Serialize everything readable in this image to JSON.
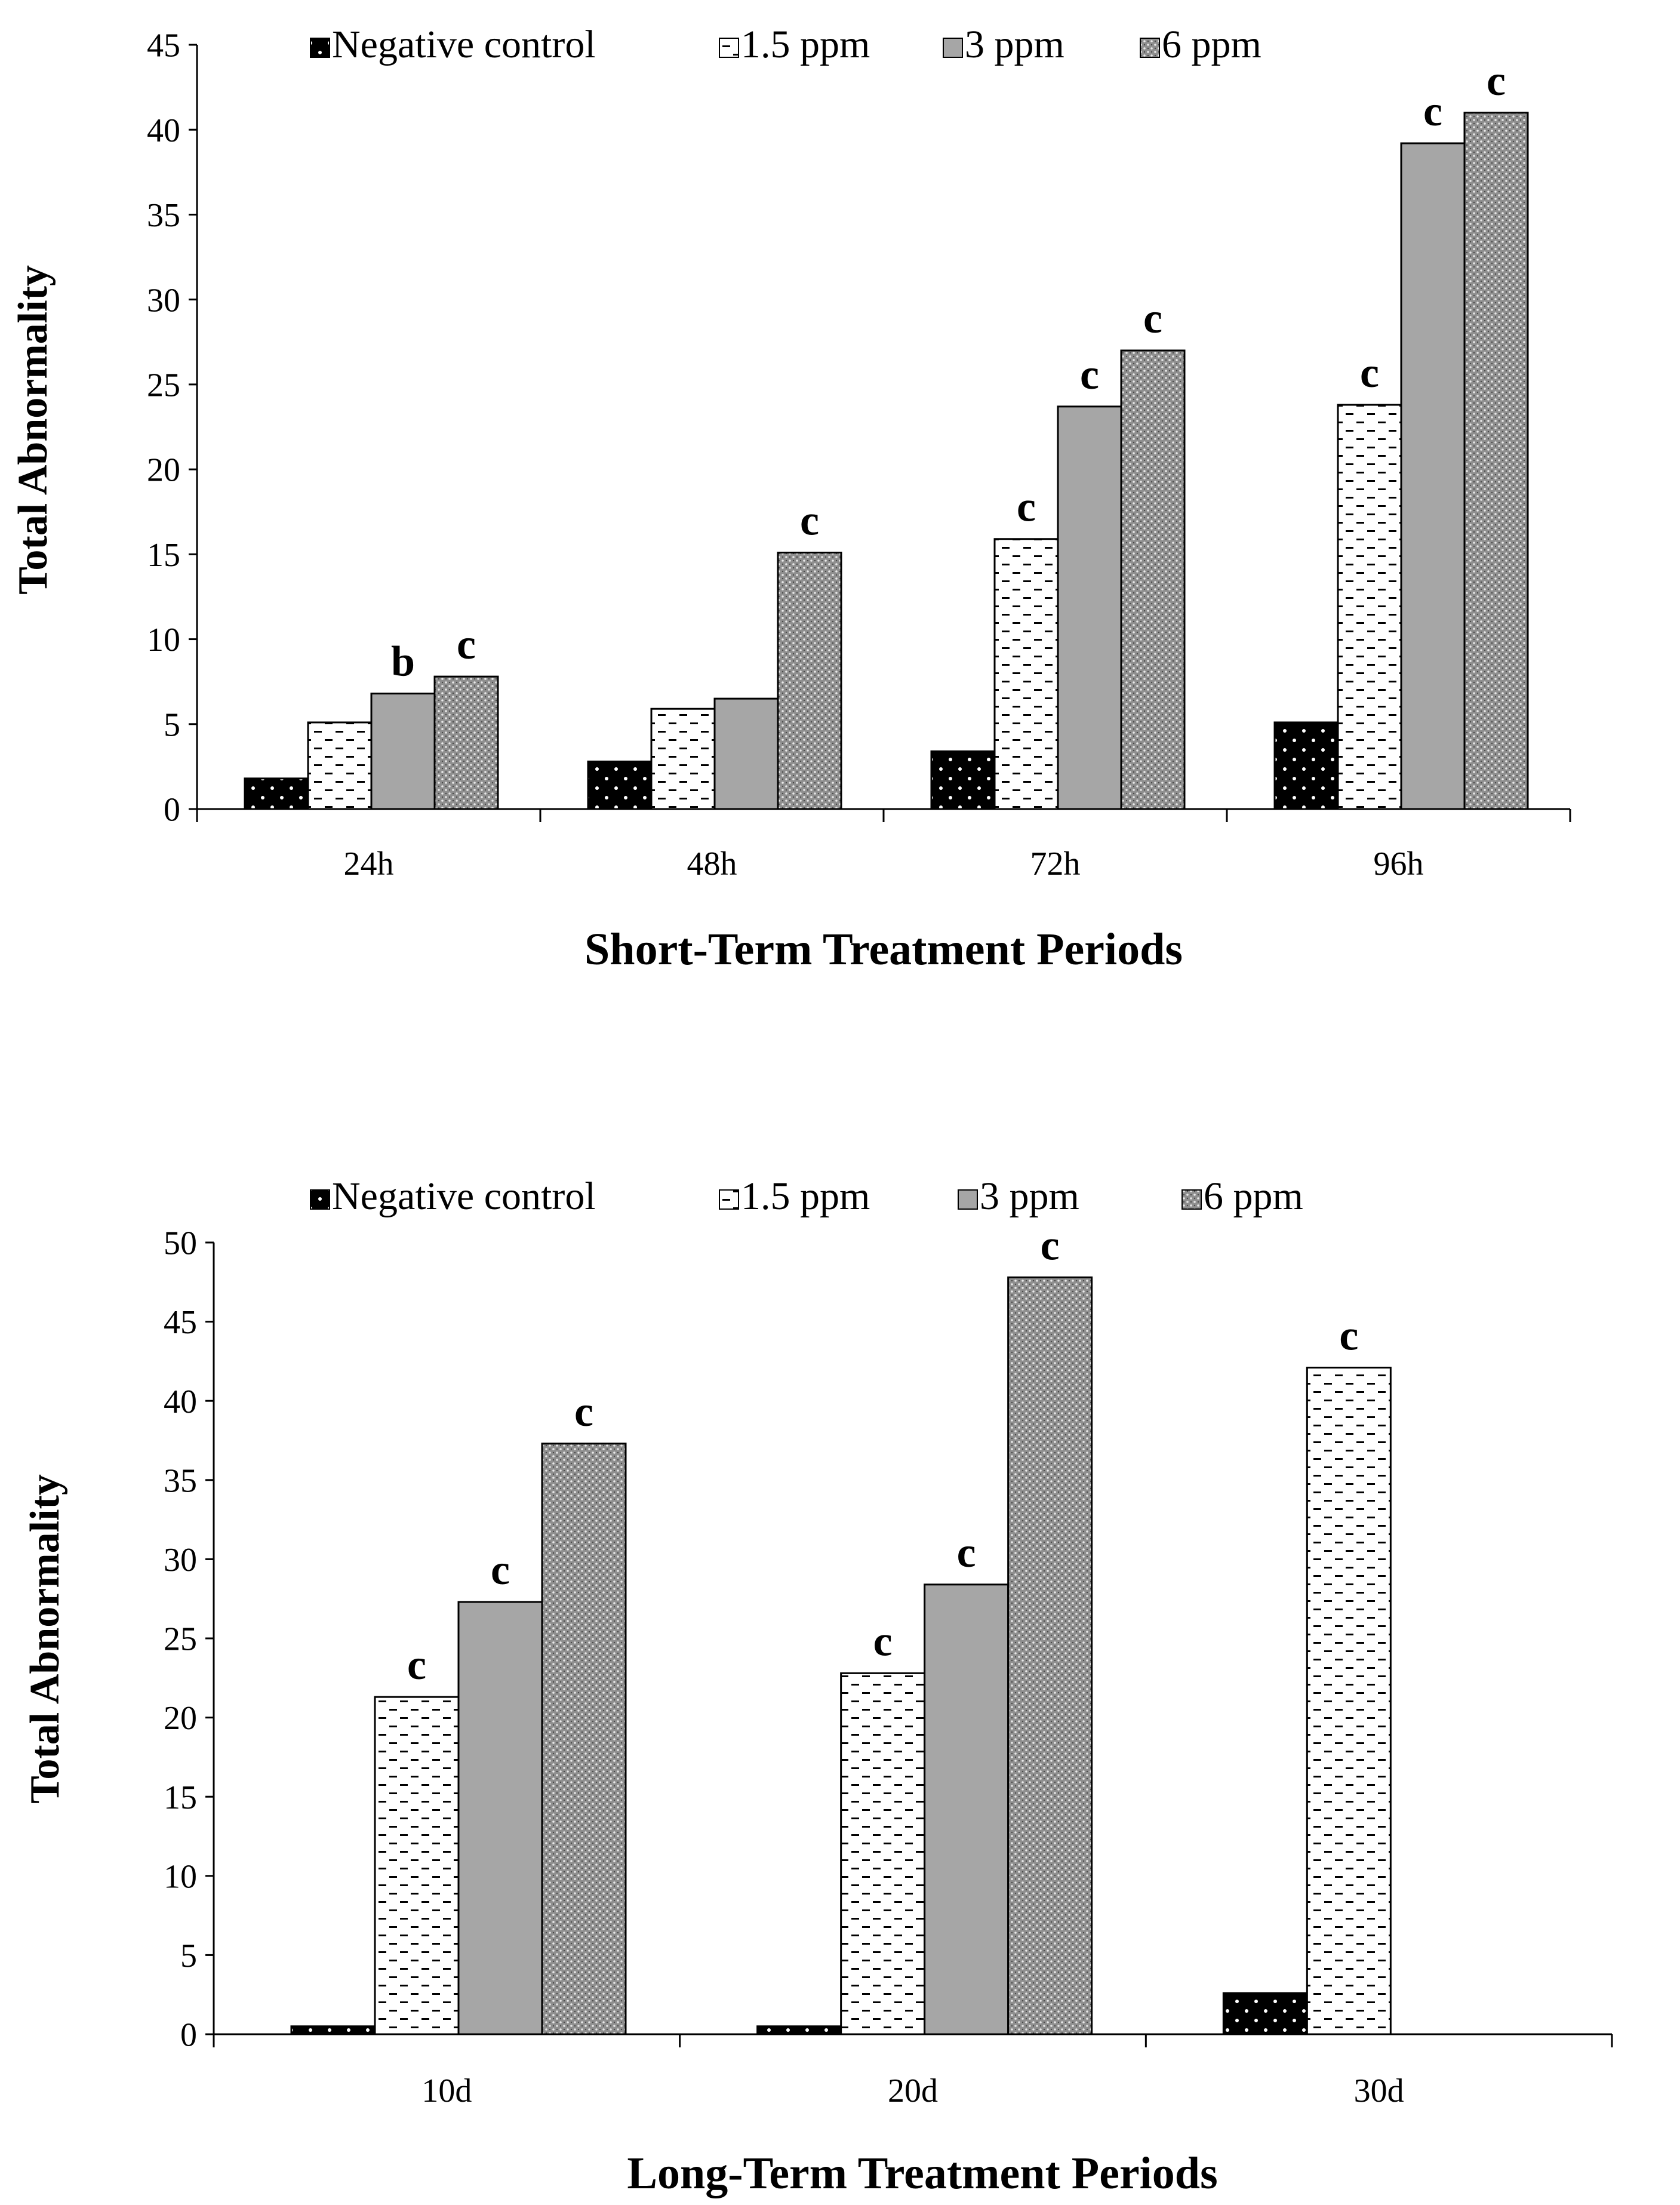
{
  "chart_data": [
    {
      "type": "bar",
      "title": "",
      "xlabel": "Short-Term  Treatment  Periods",
      "ylabel": "Total Abnormality",
      "ylim": [
        0,
        45
      ],
      "yticks": [
        "0",
        "5",
        "10",
        "15",
        "20",
        "25",
        "30",
        "35",
        "40",
        "45"
      ],
      "categories": [
        "24h",
        "48h",
        "72h",
        "96h"
      ],
      "legend_position": "top",
      "series": [
        {
          "name": "Negative control",
          "values": [
            1.8,
            2.8,
            3.4,
            5.1
          ],
          "labels": [
            "",
            "",
            "",
            ""
          ]
        },
        {
          "name": "1.5 ppm",
          "values": [
            5.1,
            5.9,
            15.9,
            23.8
          ],
          "labels": [
            "",
            "",
            "c",
            "c"
          ]
        },
        {
          "name": "3 ppm",
          "values": [
            6.8,
            6.5,
            23.7,
            39.2
          ],
          "labels": [
            "b",
            "",
            "c",
            "c"
          ]
        },
        {
          "name": "6 ppm",
          "values": [
            7.8,
            15.1,
            27.0,
            41.0
          ],
          "labels": [
            "c",
            "c",
            "c",
            "c"
          ]
        }
      ]
    },
    {
      "type": "bar",
      "title": "",
      "xlabel": "Long-Term  Treatment  Periods",
      "ylabel": "Total Abnormality",
      "ylim": [
        0,
        50
      ],
      "yticks": [
        "0",
        "5",
        "10",
        "15",
        "20",
        "25",
        "30",
        "35",
        "40",
        "45",
        "50"
      ],
      "categories": [
        "10d",
        "20d",
        "30d"
      ],
      "legend_position": "top",
      "series": [
        {
          "name": "Negative control",
          "values": [
            0.5,
            0.5,
            2.6
          ],
          "labels": [
            "",
            "",
            ""
          ]
        },
        {
          "name": "1.5 ppm",
          "values": [
            21.3,
            22.8,
            42.1
          ],
          "labels": [
            "c",
            "c",
            "c"
          ]
        },
        {
          "name": "3 ppm",
          "values": [
            27.3,
            28.4,
            null
          ],
          "labels": [
            "c",
            "c",
            ""
          ]
        },
        {
          "name": "6 ppm",
          "values": [
            37.3,
            47.8,
            null
          ],
          "labels": [
            "c",
            "c",
            ""
          ]
        }
      ]
    }
  ],
  "series_colors": [
    "#000000",
    "#ffffff",
    "#a6a6a6",
    "#8c8c8c"
  ]
}
